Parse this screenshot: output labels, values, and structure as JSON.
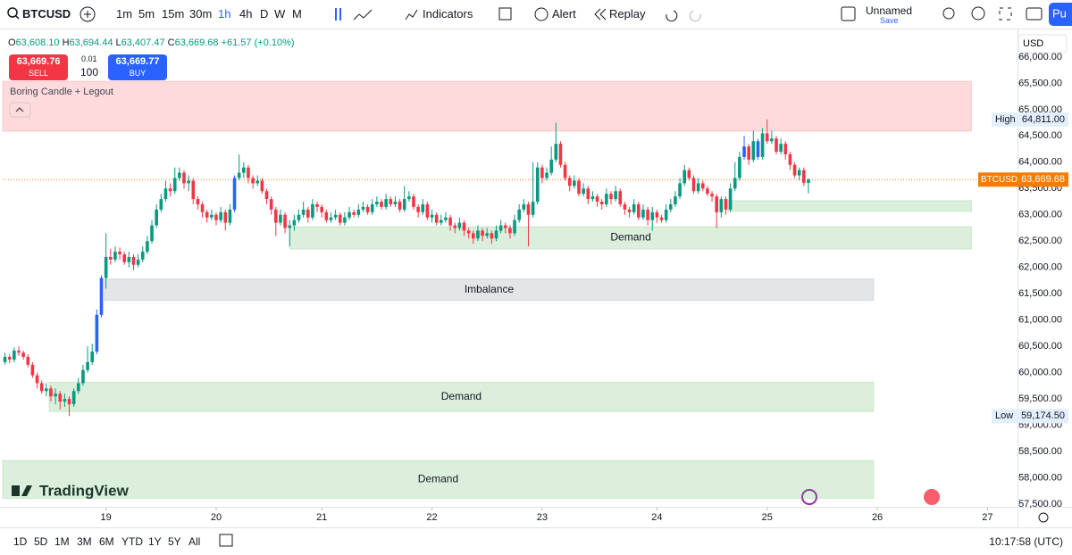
{
  "toolbar": {
    "symbol": "BTCUSD",
    "intervals": [
      "1m",
      "5m",
      "15m",
      "30m",
      "1h",
      "4h",
      "D",
      "W",
      "M"
    ],
    "selected_interval": "1h",
    "indicators": "Indicators",
    "alert": "Alert",
    "replay": "Replay",
    "layout_name": "Unnamed",
    "layout_status": "Save",
    "publish": "Pu"
  },
  "legend": {
    "open_key": "O",
    "open": "63,608.10",
    "high_key": "H",
    "high": "63,694.44",
    "low_key": "L",
    "low": "63,407.47",
    "close_key": "C",
    "close": "63,669.68",
    "change": "+61.57 (+0.10%)"
  },
  "trade_panel": {
    "sell_price": "63,669.76",
    "sell": "SELL",
    "spread": "0.01",
    "quantity": "100",
    "buy_price": "63,669.77",
    "buy": "BUY"
  },
  "indicator_name": "Boring Candle + Legout",
  "currency": "USD",
  "watermark": "TradingView",
  "chart_data": {
    "type": "candlestick",
    "x": [
      0,
      1,
      2,
      3,
      4,
      5,
      6,
      7,
      8,
      9,
      10,
      11,
      12,
      13,
      14,
      15,
      16,
      17,
      18,
      19,
      20,
      21,
      22,
      23,
      24,
      25,
      26,
      27,
      28,
      29,
      30,
      31,
      32,
      33,
      34,
      35,
      36,
      37,
      38,
      39,
      40,
      41,
      42,
      43,
      44,
      45,
      46,
      47,
      48,
      49,
      50,
      51,
      52,
      53,
      54,
      55,
      56,
      57,
      58,
      59,
      60,
      61,
      62,
      63,
      64,
      65,
      66,
      67,
      68,
      69,
      70,
      71,
      72,
      73,
      74,
      75,
      76,
      77,
      78,
      79,
      80,
      81,
      82,
      83,
      84,
      85,
      86,
      87,
      88,
      89,
      90,
      91,
      92,
      93,
      94,
      95,
      96,
      97,
      98,
      99,
      100,
      101,
      102,
      103,
      104,
      105,
      106,
      107,
      108,
      109,
      110,
      111,
      112,
      113,
      114,
      115,
      116,
      117,
      118,
      119,
      120,
      121,
      122,
      123,
      124,
      125,
      126,
      127,
      128,
      129,
      130,
      131,
      132,
      133,
      134,
      135,
      136,
      137,
      138,
      139,
      140,
      141,
      142,
      143,
      144,
      145,
      146,
      147,
      148,
      149,
      150,
      151,
      152,
      153,
      154,
      155,
      156,
      157,
      158,
      159,
      160,
      161,
      162,
      163,
      164,
      165,
      166,
      167,
      168,
      169,
      170,
      171,
      172,
      173,
      174,
      175
    ],
    "ohlc": [
      [
        60200,
        60380,
        60150,
        60300
      ],
      [
        60300,
        60350,
        60180,
        60250
      ],
      [
        60250,
        60480,
        60200,
        60420
      ],
      [
        60420,
        60500,
        60320,
        60380
      ],
      [
        60380,
        60420,
        60250,
        60300
      ],
      [
        60300,
        60350,
        60100,
        60150
      ],
      [
        60150,
        60200,
        59900,
        59950
      ],
      [
        59950,
        60000,
        59700,
        59800
      ],
      [
        59800,
        59850,
        59600,
        59650
      ],
      [
        59650,
        59800,
        59550,
        59700
      ],
      [
        59700,
        59750,
        59450,
        59550
      ],
      [
        59550,
        59700,
        59400,
        59600
      ],
      [
        59600,
        59650,
        59300,
        59450
      ],
      [
        59450,
        59600,
        59350,
        59500
      ],
      [
        59500,
        59550,
        59174.5,
        59400
      ],
      [
        59400,
        59700,
        59350,
        59650
      ],
      [
        59650,
        59900,
        59600,
        59800
      ],
      [
        59800,
        60150,
        59750,
        60050
      ],
      [
        60050,
        60500,
        60000,
        60200
      ],
      [
        60200,
        60550,
        60150,
        60400
      ],
      [
        60400,
        61200,
        60350,
        61100
      ],
      [
        61100,
        61850,
        61050,
        61800
      ],
      [
        61800,
        62650,
        61600,
        62200
      ],
      [
        62200,
        62350,
        62050,
        62150
      ],
      [
        62150,
        62400,
        62100,
        62300
      ],
      [
        62300,
        62380,
        62150,
        62250
      ],
      [
        62250,
        62300,
        62050,
        62100
      ],
      [
        62100,
        62300,
        62000,
        62200
      ],
      [
        62200,
        62250,
        61950,
        62050
      ],
      [
        62050,
        62250,
        62000,
        62150
      ],
      [
        62150,
        62400,
        62100,
        62300
      ],
      [
        62300,
        62600,
        62250,
        62500
      ],
      [
        62500,
        62900,
        62450,
        62800
      ],
      [
        62800,
        63200,
        62750,
        63100
      ],
      [
        63100,
        63400,
        63050,
        63300
      ],
      [
        63300,
        63650,
        63250,
        63500
      ],
      [
        63500,
        63600,
        63350,
        63450
      ],
      [
        63450,
        63900,
        63400,
        63700
      ],
      [
        63700,
        63900,
        63650,
        63800
      ],
      [
        63800,
        63850,
        63500,
        63600
      ],
      [
        63600,
        63750,
        63450,
        63650
      ],
      [
        63650,
        63700,
        63200,
        63300
      ],
      [
        63300,
        63350,
        63100,
        63200
      ],
      [
        63200,
        63250,
        62950,
        63050
      ],
      [
        63050,
        63100,
        62850,
        62950
      ],
      [
        62950,
        63100,
        62900,
        63000
      ],
      [
        63000,
        63050,
        62800,
        62900
      ],
      [
        62900,
        63150,
        62850,
        63050
      ],
      [
        63050,
        63100,
        62700,
        62850
      ],
      [
        62850,
        63200,
        62800,
        63100
      ],
      [
        63100,
        63750,
        63050,
        63700
      ],
      [
        63700,
        64150,
        63650,
        63800
      ],
      [
        63800,
        64000,
        63700,
        63900
      ],
      [
        63900,
        63950,
        63600,
        63700
      ],
      [
        63700,
        63750,
        63500,
        63600
      ],
      [
        63600,
        63750,
        63550,
        63650
      ],
      [
        63650,
        63700,
        63400,
        63450
      ],
      [
        63450,
        63500,
        63200,
        63300
      ],
      [
        63300,
        63350,
        63000,
        63100
      ],
      [
        63100,
        63150,
        62600,
        62850
      ],
      [
        62850,
        63100,
        62800,
        63000
      ],
      [
        63000,
        63050,
        62650,
        62750
      ],
      [
        62750,
        62900,
        62400,
        62800
      ],
      [
        62800,
        63000,
        62700,
        62900
      ],
      [
        62900,
        63100,
        62850,
        63000
      ],
      [
        63000,
        63250,
        62950,
        63100
      ],
      [
        63100,
        63150,
        62850,
        62950
      ],
      [
        62950,
        63300,
        62900,
        63200
      ],
      [
        63200,
        63250,
        63050,
        63150
      ],
      [
        63150,
        63200,
        62950,
        63050
      ],
      [
        63050,
        63100,
        62850,
        62900
      ],
      [
        62900,
        63050,
        62850,
        62950
      ],
      [
        62950,
        63100,
        62900,
        63000
      ],
      [
        63000,
        63050,
        62800,
        62850
      ],
      [
        62850,
        63050,
        62800,
        62950
      ],
      [
        62950,
        63150,
        62900,
        63050
      ],
      [
        63050,
        63100,
        62950,
        63000
      ],
      [
        63000,
        63200,
        62950,
        63100
      ],
      [
        63100,
        63250,
        63050,
        63150
      ],
      [
        63150,
        63200,
        63000,
        63050
      ],
      [
        63050,
        63300,
        63000,
        63200
      ],
      [
        63200,
        63350,
        63150,
        63250
      ],
      [
        63250,
        63300,
        63100,
        63150
      ],
      [
        63150,
        63400,
        63100,
        63300
      ],
      [
        63300,
        63350,
        63150,
        63200
      ],
      [
        63200,
        63350,
        63150,
        63250
      ],
      [
        63250,
        63300,
        63050,
        63100
      ],
      [
        63100,
        63550,
        63050,
        63300
      ],
      [
        63300,
        63450,
        63250,
        63350
      ],
      [
        63350,
        63400,
        63100,
        63150
      ],
      [
        63150,
        63200,
        62950,
        63050
      ],
      [
        63050,
        63300,
        63000,
        63200
      ],
      [
        63200,
        63250,
        62900,
        62950
      ],
      [
        62950,
        63100,
        62850,
        63000
      ],
      [
        63000,
        63050,
        62800,
        62850
      ],
      [
        62850,
        63000,
        62800,
        62900
      ],
      [
        62900,
        63050,
        62850,
        62950
      ],
      [
        62950,
        63000,
        62700,
        62800
      ],
      [
        62800,
        62850,
        62650,
        62750
      ],
      [
        62750,
        62950,
        62700,
        62850
      ],
      [
        62850,
        62900,
        62600,
        62700
      ],
      [
        62700,
        62750,
        62550,
        62650
      ],
      [
        62650,
        62700,
        62450,
        62550
      ],
      [
        62550,
        62800,
        62500,
        62700
      ],
      [
        62700,
        62750,
        62500,
        62600
      ],
      [
        62600,
        62750,
        62550,
        62650
      ],
      [
        62650,
        62700,
        62450,
        62550
      ],
      [
        62550,
        62800,
        62500,
        62700
      ],
      [
        62700,
        62900,
        62650,
        62800
      ],
      [
        62800,
        62850,
        62650,
        62750
      ],
      [
        62750,
        62800,
        62550,
        62650
      ],
      [
        62650,
        63000,
        62600,
        62900
      ],
      [
        62900,
        63200,
        62850,
        63100
      ],
      [
        63100,
        63300,
        63050,
        63200
      ],
      [
        63200,
        63250,
        62400,
        63000
      ],
      [
        63000,
        64000,
        62950,
        63250
      ],
      [
        63250,
        64000,
        63200,
        63900
      ],
      [
        63900,
        63950,
        63600,
        63700
      ],
      [
        63700,
        63900,
        63650,
        63800
      ],
      [
        63800,
        64300,
        63750,
        64050
      ],
      [
        64050,
        64750,
        64000,
        64350
      ],
      [
        64350,
        64400,
        63900,
        63950
      ],
      [
        63950,
        64000,
        63650,
        63700
      ],
      [
        63700,
        63750,
        63450,
        63550
      ],
      [
        63550,
        63750,
        63500,
        63650
      ],
      [
        63650,
        63700,
        63350,
        63400
      ],
      [
        63400,
        63600,
        63350,
        63500
      ],
      [
        63500,
        63550,
        63200,
        63300
      ],
      [
        63300,
        63450,
        63250,
        63350
      ],
      [
        63350,
        63400,
        63150,
        63250
      ],
      [
        63250,
        63300,
        63100,
        63200
      ],
      [
        63200,
        63500,
        63150,
        63400
      ],
      [
        63400,
        63450,
        63200,
        63300
      ],
      [
        63300,
        63550,
        63250,
        63450
      ],
      [
        63450,
        63500,
        63150,
        63200
      ],
      [
        63200,
        63250,
        63000,
        63100
      ],
      [
        63100,
        63150,
        62950,
        63050
      ],
      [
        63050,
        63300,
        63000,
        63200
      ],
      [
        63200,
        63250,
        62900,
        62950
      ],
      [
        62950,
        63200,
        62900,
        63100
      ],
      [
        63100,
        63150,
        62800,
        62900
      ],
      [
        62900,
        63150,
        62700,
        63050
      ],
      [
        63050,
        63100,
        62850,
        62950
      ],
      [
        62950,
        63000,
        62850,
        62900
      ],
      [
        62900,
        63200,
        62850,
        63100
      ],
      [
        63100,
        63300,
        63050,
        63200
      ],
      [
        63200,
        63450,
        63150,
        63350
      ],
      [
        63350,
        63700,
        63300,
        63600
      ],
      [
        63600,
        63950,
        63550,
        63850
      ],
      [
        63850,
        63900,
        63650,
        63700
      ],
      [
        63700,
        63750,
        63400,
        63450
      ],
      [
        63450,
        63700,
        63400,
        63600
      ],
      [
        63600,
        63650,
        63450,
        63500
      ],
      [
        63500,
        63550,
        63350,
        63400
      ],
      [
        63400,
        63450,
        63250,
        63350
      ],
      [
        63350,
        63400,
        62750,
        63050
      ],
      [
        63050,
        63350,
        62950,
        63300
      ],
      [
        63300,
        63350,
        63000,
        63100
      ],
      [
        63100,
        63600,
        63050,
        63500
      ],
      [
        63500,
        64000,
        63450,
        63700
      ],
      [
        63700,
        64200,
        63650,
        64100
      ],
      [
        64100,
        64500,
        64050,
        64300
      ],
      [
        64300,
        64350,
        63950,
        64050
      ],
      [
        64050,
        64600,
        64000,
        64400
      ],
      [
        64400,
        64450,
        64050,
        64100
      ],
      [
        64100,
        64650,
        64050,
        64550
      ],
      [
        64550,
        64811,
        64350,
        64400
      ],
      [
        64400,
        64600,
        64350,
        64450
      ],
      [
        64450,
        64500,
        64150,
        64200
      ],
      [
        64200,
        64450,
        64150,
        64350
      ],
      [
        64350,
        64400,
        64050,
        64150
      ],
      [
        64150,
        64200,
        63850,
        63950
      ],
      [
        63950,
        64000,
        63700,
        63750
      ],
      [
        63750,
        63900,
        63650,
        63850
      ],
      [
        63850,
        63900,
        63550,
        63608.1
      ],
      [
        63608.1,
        63694.44,
        63407.47,
        63669.68
      ]
    ],
    "colors": {
      "up": "#089981",
      "down": "#f23645",
      "highlight": "#2962ff"
    },
    "highlighted": [
      20,
      21,
      50,
      161,
      164
    ],
    "xlim": [
      -0.5,
      211
    ],
    "xticks": [
      {
        "value": 22,
        "label": "19"
      },
      {
        "value": 46,
        "label": "20"
      },
      {
        "value": 69,
        "label": "21"
      },
      {
        "value": 93,
        "label": "22"
      },
      {
        "value": 117,
        "label": "23"
      },
      {
        "value": 142,
        "label": "24"
      },
      {
        "value": 166,
        "label": "25"
      },
      {
        "value": 190,
        "label": "26"
      },
      {
        "value": 214,
        "label": "27"
      }
    ],
    "ylim": [
      57450,
      66490
    ],
    "yticks": [
      {
        "value": 57500,
        "label": "57,500.00"
      },
      {
        "value": 58000,
        "label": "58,000.00"
      },
      {
        "value": 58500,
        "label": "58,500.00"
      },
      {
        "value": 59000,
        "label": "59,000.00"
      },
      {
        "value": 59500,
        "label": "59,500.00"
      },
      {
        "value": 60000,
        "label": "60,000.00"
      },
      {
        "value": 60500,
        "label": "60,500.00"
      },
      {
        "value": 61000,
        "label": "61,000.00"
      },
      {
        "value": 61500,
        "label": "61,500.00"
      },
      {
        "value": 62000,
        "label": "62,000.00"
      },
      {
        "value": 62500,
        "label": "62,500.00"
      },
      {
        "value": 63000,
        "label": "63,000.00"
      },
      {
        "value": 63500,
        "label": "63,500.00"
      },
      {
        "value": 64000,
        "label": "64,000.00"
      },
      {
        "value": 64500,
        "label": "64,500.00"
      },
      {
        "value": 65000,
        "label": "65,000.00"
      },
      {
        "value": 65500,
        "label": "65,500.00"
      },
      {
        "value": 66000,
        "label": "66,000.00"
      }
    ],
    "zones": [
      {
        "x": [
          -0.5,
          210.5
        ],
        "y": [
          64590,
          65540
        ],
        "color": "rgba(242,54,69,0.18)"
      },
      {
        "label": "Imbalance",
        "x": [
          21.7,
          189.2
        ],
        "y": [
          61375,
          61780
        ],
        "color": "rgba(120,123,134,0.2)"
      },
      {
        "x": [
          157.5,
          210.5
        ],
        "y": [
          63065,
          63270
        ],
        "color": "rgba(76,175,80,0.2)"
      },
      {
        "label": "Demand",
        "x": [
          62.1,
          210.5
        ],
        "y": [
          62350,
          62775
        ],
        "color": "rgba(76,175,80,0.2)"
      },
      {
        "label": "Demand",
        "x": [
          9.6,
          189.2
        ],
        "y": [
          59260,
          59820
        ],
        "color": "rgba(76,175,80,0.2)"
      },
      {
        "label": "Demand",
        "x": [
          -0.5,
          189.2
        ],
        "y": [
          57610,
          58330
        ],
        "color": "rgba(76,175,80,0.2)"
      }
    ],
    "high_marker": {
      "label": "High",
      "value": 64811,
      "value_label": "64,811.00"
    },
    "low_marker": {
      "label": "Low",
      "value": 59174.5,
      "value_label": "59,174.50"
    },
    "last_price": {
      "name": "BTCUSD",
      "value": 63669.68,
      "value_label": "63,669.68",
      "color": "#f57c00"
    }
  },
  "ranges": [
    "1D",
    "5D",
    "1M",
    "3M",
    "6M",
    "YTD",
    "1Y",
    "5Y",
    "All"
  ],
  "clock": "10:17:58 (UTC)"
}
